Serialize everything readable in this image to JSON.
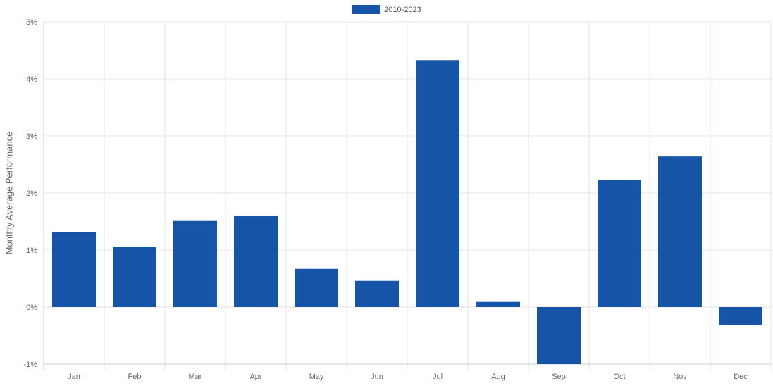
{
  "chart_data": {
    "type": "bar",
    "title": "",
    "xlabel": "",
    "ylabel": "Monthly Average Performance",
    "categories": [
      "Jan",
      "Feb",
      "Mar",
      "Apr",
      "May",
      "Jun",
      "Jul",
      "Aug",
      "Sep",
      "Oct",
      "Nov",
      "Dec"
    ],
    "series": [
      {
        "name": "2010-2023",
        "values": [
          1.32,
          1.06,
          1.51,
          1.6,
          0.67,
          0.46,
          4.33,
          0.09,
          -1.0,
          2.23,
          2.64,
          -0.32
        ]
      }
    ],
    "ylim": [
      -1,
      5
    ],
    "yticks": [
      "-1%",
      "0%",
      "1%",
      "2%",
      "3%",
      "4%",
      "5%"
    ],
    "legend_position": "top-center",
    "grid": true,
    "colors": {
      "bar": "#1554a6",
      "grid": "#e6e6e6",
      "axis": "#cccccc",
      "text": "#666666"
    }
  }
}
